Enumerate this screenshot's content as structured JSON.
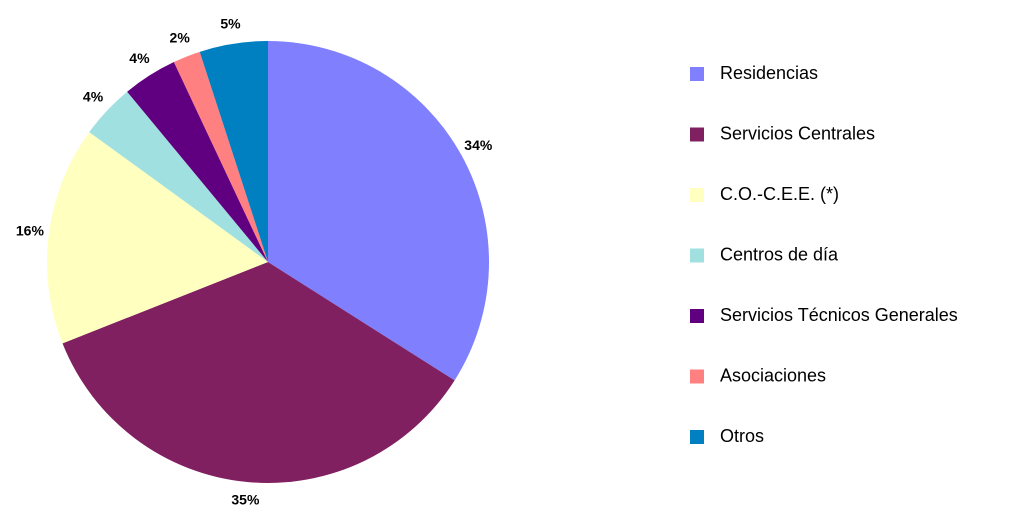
{
  "chart_data": {
    "type": "pie",
    "categories": [
      "Residencias",
      "Servicios Centrales",
      "C.O.-C.E.E. (*)",
      "Centros de día",
      "Servicios Técnicos Generales",
      "Asociaciones",
      "Otros"
    ],
    "values": [
      34,
      35,
      16,
      4,
      4,
      2,
      5
    ],
    "value_labels": [
      "34%",
      "35%",
      "16%",
      "4%",
      "4%",
      "2%",
      "5%"
    ],
    "colors": [
      "#8080ff",
      "#802060",
      "#ffffc0",
      "#a0e0e0",
      "#600080",
      "#ff8080",
      "#0080c0"
    ],
    "legend": "right"
  }
}
